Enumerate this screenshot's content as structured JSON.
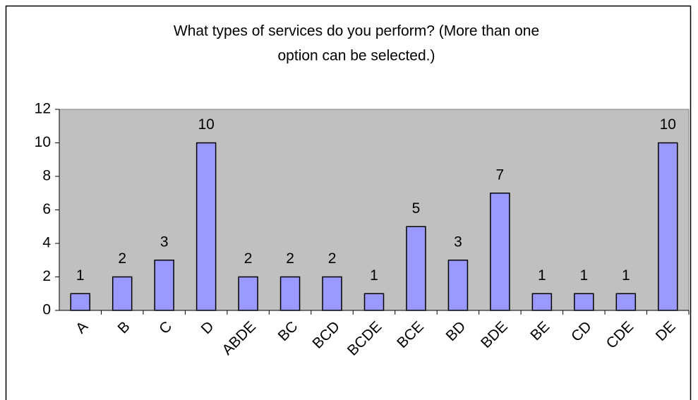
{
  "chart_data": {
    "type": "bar",
    "title": [
      "What types of services do you perform? (More than one",
      "option can be selected.)"
    ],
    "categories": [
      "A",
      "B",
      "C",
      "D",
      "ABDE",
      "BC",
      "BCD",
      "BCDE",
      "BCE",
      "BD",
      "BDE",
      "BE",
      "CD",
      "CDE",
      "DE"
    ],
    "values": [
      1,
      2,
      3,
      10,
      2,
      2,
      2,
      1,
      5,
      3,
      7,
      1,
      1,
      1,
      10
    ],
    "color": "#9999ff",
    "ylim": [
      0,
      12
    ],
    "yticks": [
      0,
      2,
      4,
      6,
      8,
      10,
      12
    ],
    "grid": false
  }
}
